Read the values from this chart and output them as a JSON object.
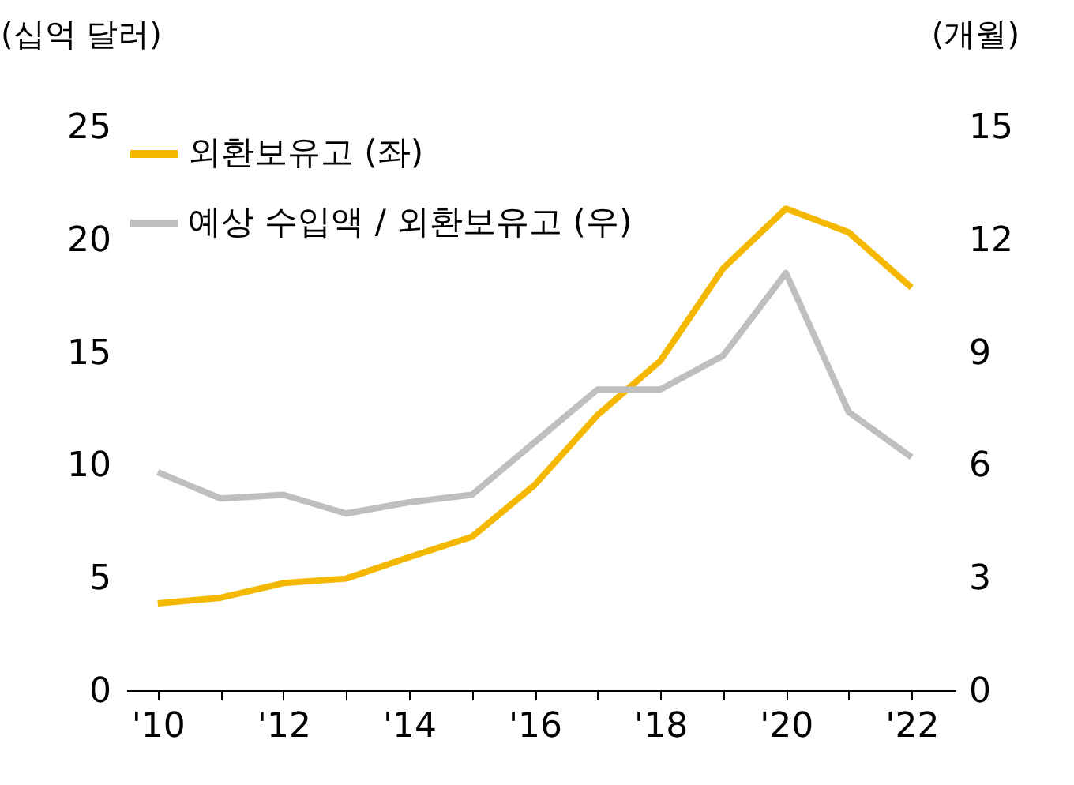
{
  "chart_data": {
    "type": "line",
    "ylabel": "(십억 달러)",
    "y2label": "(개월)",
    "x": [
      2010,
      2011,
      2012,
      2013,
      2014,
      2015,
      2016,
      2017,
      2018,
      2019,
      2020,
      2021,
      2022
    ],
    "xlim": [
      2009.5,
      2022.7
    ],
    "xticks": [
      {
        "value": 2010,
        "label": "'10"
      },
      {
        "value": 2011,
        "label": null
      },
      {
        "value": 2012,
        "label": "'12"
      },
      {
        "value": 2013,
        "label": null
      },
      {
        "value": 2014,
        "label": "'14"
      },
      {
        "value": 2015,
        "label": null
      },
      {
        "value": 2016,
        "label": "'16"
      },
      {
        "value": 2017,
        "label": null
      },
      {
        "value": 2018,
        "label": "'18"
      },
      {
        "value": 2019,
        "label": null
      },
      {
        "value": 2020,
        "label": "'20"
      },
      {
        "value": 2021,
        "label": null
      },
      {
        "value": 2022,
        "label": "'22"
      }
    ],
    "ylim": [
      0,
      25
    ],
    "yticks": [
      0,
      5,
      10,
      15,
      20,
      25
    ],
    "y2lim": [
      0,
      15
    ],
    "y2ticks": [
      0,
      3,
      6,
      9,
      12,
      15
    ],
    "series": [
      {
        "name": "외환보유고 (좌)",
        "color": "#f5b800",
        "values": [
          3.85,
          4.1,
          4.75,
          4.95,
          5.9,
          6.8,
          9.1,
          12.2,
          14.6,
          18.7,
          21.35,
          20.3,
          17.85
        ]
      },
      {
        "name": "예상 수입액 / 외환보유고 (우)",
        "color": "#bfbfbf",
        "axis": "y2",
        "values": [
          5.8,
          5.1,
          5.2,
          4.7,
          5.0,
          5.2,
          6.6,
          8.0,
          8.0,
          8.9,
          11.1,
          7.4,
          6.2
        ]
      }
    ],
    "grid": false,
    "legend": "top left",
    "marker": "none",
    "line_style": "solid"
  }
}
